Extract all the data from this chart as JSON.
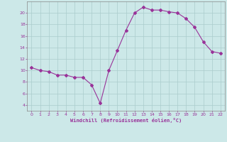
{
  "x_values": [
    0,
    1,
    2,
    3,
    4,
    5,
    6,
    7,
    8,
    9,
    10,
    11,
    12,
    13,
    14,
    15,
    16,
    17,
    18,
    19,
    20,
    21,
    22
  ],
  "y_values": [
    10.5,
    10.0,
    9.8,
    9.2,
    9.2,
    8.8,
    8.8,
    7.5,
    4.3,
    10.0,
    13.5,
    17.0,
    20.0,
    21.0,
    20.5,
    20.5,
    20.2,
    20.0,
    19.0,
    17.5,
    15.0,
    13.3,
    13.0
  ],
  "line_color": "#993399",
  "marker": "D",
  "marker_size": 2.0,
  "line_width": 0.8,
  "bg_color": "#cce8e8",
  "grid_color": "#aacccc",
  "xlabel": "Windchill (Refroidissement éolien,°C)",
  "xlabel_color": "#993399",
  "tick_color": "#993399",
  "label_fontsize": 4.5,
  "xlabel_fontsize": 5.0,
  "ylim": [
    3,
    22
  ],
  "xlim": [
    -0.5,
    22.5
  ],
  "yticks": [
    4,
    6,
    8,
    10,
    12,
    14,
    16,
    18,
    20
  ],
  "xticks": [
    0,
    1,
    2,
    3,
    4,
    5,
    6,
    7,
    8,
    9,
    10,
    11,
    12,
    13,
    14,
    15,
    16,
    17,
    18,
    19,
    20,
    21,
    22
  ]
}
